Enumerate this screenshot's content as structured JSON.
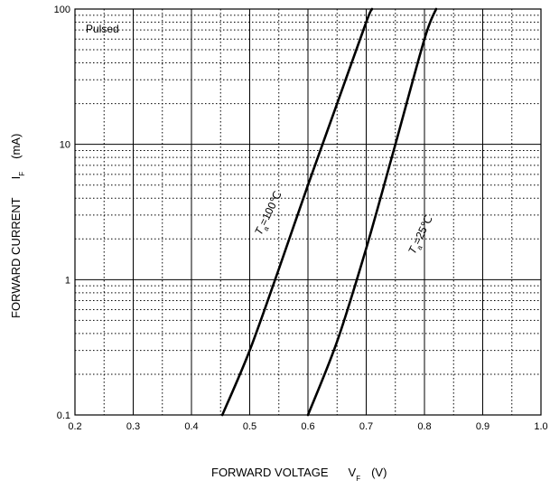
{
  "chart_data": {
    "type": "line",
    "x_scale": "linear",
    "y_scale": "log",
    "xlim": [
      0.2,
      1.0
    ],
    "ylim": [
      0.1,
      100
    ],
    "x_ticks": [
      "0.2",
      "0.3",
      "0.4",
      "0.5",
      "0.6",
      "0.7",
      "0.8",
      "0.9",
      "1.0"
    ],
    "y_ticks": [
      "0.1",
      "1",
      "10",
      "100"
    ],
    "xlabel_main": "FORWARD VOLTAGE",
    "xlabel_symbol": "V",
    "xlabel_sub": "F",
    "xlabel_unit": "(V)",
    "ylabel_main": "FORWARD CURRENT",
    "ylabel_symbol": "I",
    "ylabel_sub": "F",
    "ylabel_unit": "(mA)",
    "annotation": "Pulsed",
    "grid": "major solid, minor dotted",
    "series": [
      {
        "label_symbol": "T",
        "label_sub": "a",
        "label_value": "=100℃",
        "x": [
          0.453,
          0.5,
          0.55,
          0.6,
          0.65,
          0.7,
          0.71
        ],
        "y": [
          0.1,
          0.3,
          1.2,
          5,
          20,
          80,
          100
        ]
      },
      {
        "label_symbol": "T",
        "label_sub": "a",
        "label_value": "=25℃",
        "x": [
          0.6,
          0.65,
          0.7,
          0.75,
          0.8,
          0.82
        ],
        "y": [
          0.1,
          0.35,
          1.7,
          10,
          60,
          100
        ]
      }
    ]
  }
}
